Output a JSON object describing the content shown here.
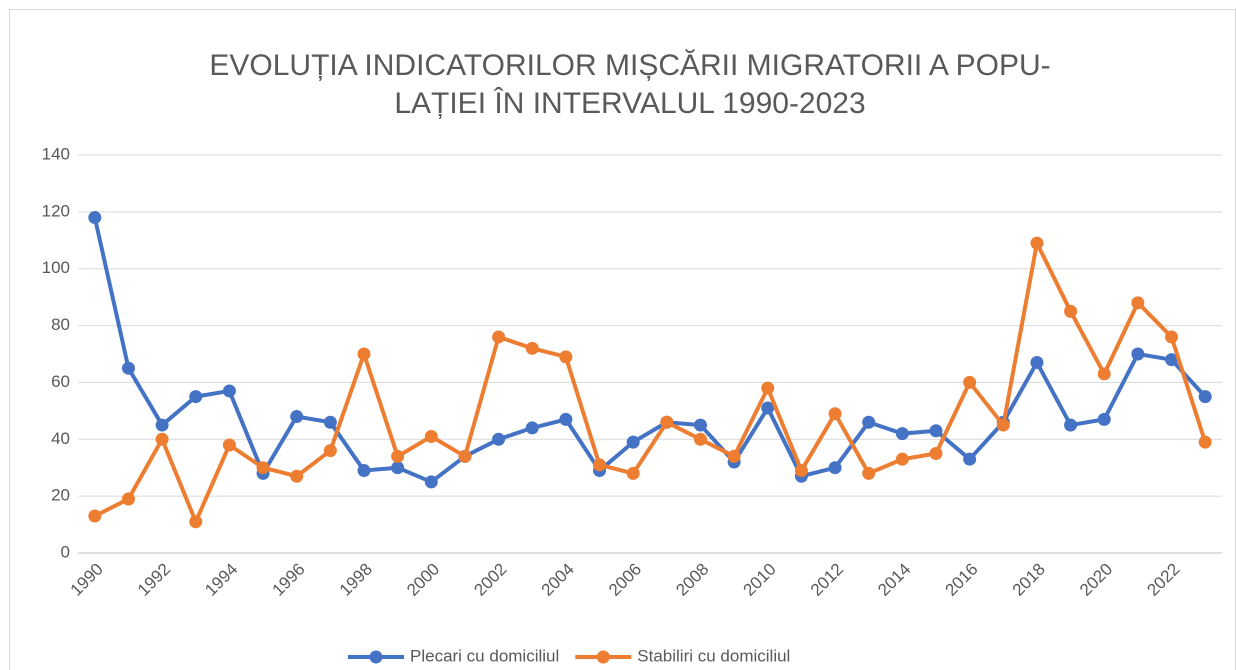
{
  "chart_data": {
    "type": "line",
    "title": [
      "EVOLUȚIA INDICATORILOR MIȘCĂRII MIGRATORII A POPU-",
      "LAȚIEI ÎN INTERVALUL 1990-2023"
    ],
    "categories": [
      "1990",
      null,
      "1992",
      null,
      "1994",
      null,
      "1996",
      null,
      "1998",
      null,
      "2000",
      null,
      "2002",
      null,
      "2004",
      null,
      "2006",
      null,
      "2008",
      null,
      "2010",
      null,
      "2012",
      null,
      "2014",
      null,
      "2016",
      null,
      "2018",
      null,
      "2020",
      null,
      "2022",
      null
    ],
    "series": [
      {
        "name": "Plecari cu domiciliul",
        "color": "#4472c4",
        "values": [
          118,
          65,
          45,
          55,
          57,
          28,
          48,
          46,
          29,
          30,
          25,
          34,
          40,
          44,
          47,
          29,
          39,
          46,
          45,
          32,
          51,
          27,
          30,
          46,
          42,
          43,
          33,
          46,
          67,
          45,
          47,
          70,
          68,
          55
        ]
      },
      {
        "name": "Stabiliri cu domiciliul",
        "color": "#ed7d31",
        "values": [
          13,
          19,
          40,
          11,
          38,
          30,
          27,
          36,
          70,
          34,
          41,
          34,
          76,
          72,
          69,
          31,
          28,
          46,
          40,
          34,
          58,
          29,
          49,
          28,
          33,
          35,
          60,
          45,
          109,
          85,
          63,
          88,
          76,
          39
        ]
      }
    ],
    "ylim": [
      0,
      140
    ],
    "yticks": [
      0,
      20,
      40,
      60,
      80,
      100,
      120,
      140
    ],
    "grid": true,
    "legend": "bottom"
  }
}
